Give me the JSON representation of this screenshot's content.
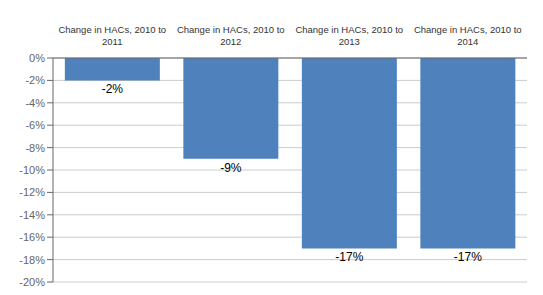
{
  "chart_data": {
    "type": "bar",
    "categories": [
      "Change in HACs, 2010 to\n2011",
      "Change in HACs, 2010 to\n2012",
      "Change in HACs, 2010 to\n2013",
      "Change in HACs, 2010 to\n2014"
    ],
    "values": [
      -2,
      -9,
      -17,
      -17
    ],
    "value_labels": [
      "-2%",
      "-9%",
      "-17%",
      "-17%"
    ],
    "data_labels": true,
    "color": "#4F81BD",
    "ylim": [
      -20,
      0
    ],
    "yticks": [
      {
        "value": 0,
        "label": "0%"
      },
      {
        "value": -2,
        "label": "-2%"
      },
      {
        "value": -4,
        "label": "-4%"
      },
      {
        "value": -6,
        "label": "-6%"
      },
      {
        "value": -8,
        "label": "-8%"
      },
      {
        "value": -10,
        "label": "-10%"
      },
      {
        "value": -12,
        "label": "-12%"
      },
      {
        "value": -14,
        "label": "-14%"
      },
      {
        "value": -16,
        "label": "-16%"
      },
      {
        "value": -18,
        "label": "-18%"
      },
      {
        "value": -20,
        "label": "-20%"
      }
    ],
    "grid": true
  }
}
